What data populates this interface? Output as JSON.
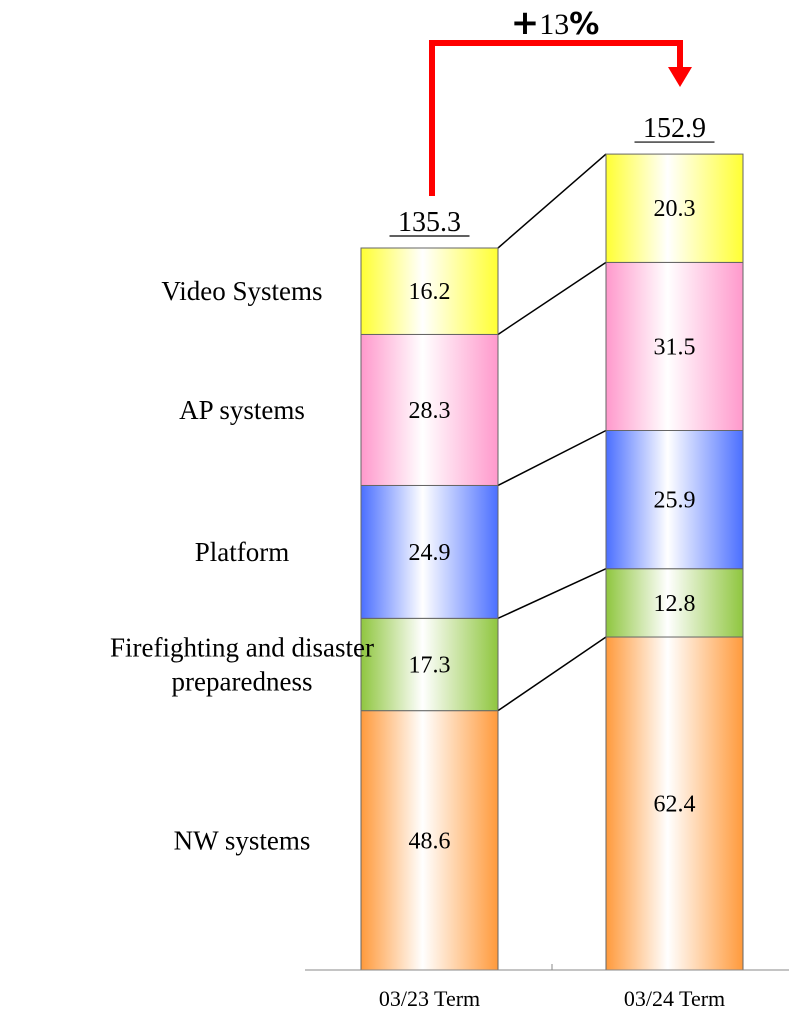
{
  "chart_data": {
    "type": "bar",
    "stacked": true,
    "categories": [
      "03/23 Term",
      "03/24 Term"
    ],
    "series": [
      {
        "name": "NW systems",
        "values": [
          48.6,
          62.4
        ],
        "color": "#ff9a3c"
      },
      {
        "name": "Firefighting and disaster preparedness",
        "values": [
          17.3,
          12.8
        ],
        "color": "#8fc63f"
      },
      {
        "name": "Platform",
        "values": [
          24.9,
          25.9
        ],
        "color": "#4b6fff"
      },
      {
        "name": "AP systems",
        "values": [
          28.3,
          31.5
        ],
        "color": "#ff99cc"
      },
      {
        "name": "Video Systems",
        "values": [
          16.2,
          20.3
        ],
        "color": "#ffff33"
      }
    ],
    "totals": [
      "135.3",
      "152.9"
    ],
    "growth": {
      "sign": "+",
      "value": "13",
      "unit": "%"
    },
    "legend_labels": [
      {
        "series": "Video Systems",
        "lines": [
          "Video Systems"
        ]
      },
      {
        "series": "AP systems",
        "lines": [
          "AP systems"
        ]
      },
      {
        "series": "Platform",
        "lines": [
          "Platform"
        ]
      },
      {
        "series": "Firefighting and disaster preparedness",
        "lines": [
          "Firefighting and disaster",
          "preparedness"
        ]
      },
      {
        "series": "NW systems",
        "lines": [
          "NW systems"
        ]
      }
    ],
    "legend_placement": "left",
    "grid": false,
    "arrow_color": "#ff0000"
  }
}
